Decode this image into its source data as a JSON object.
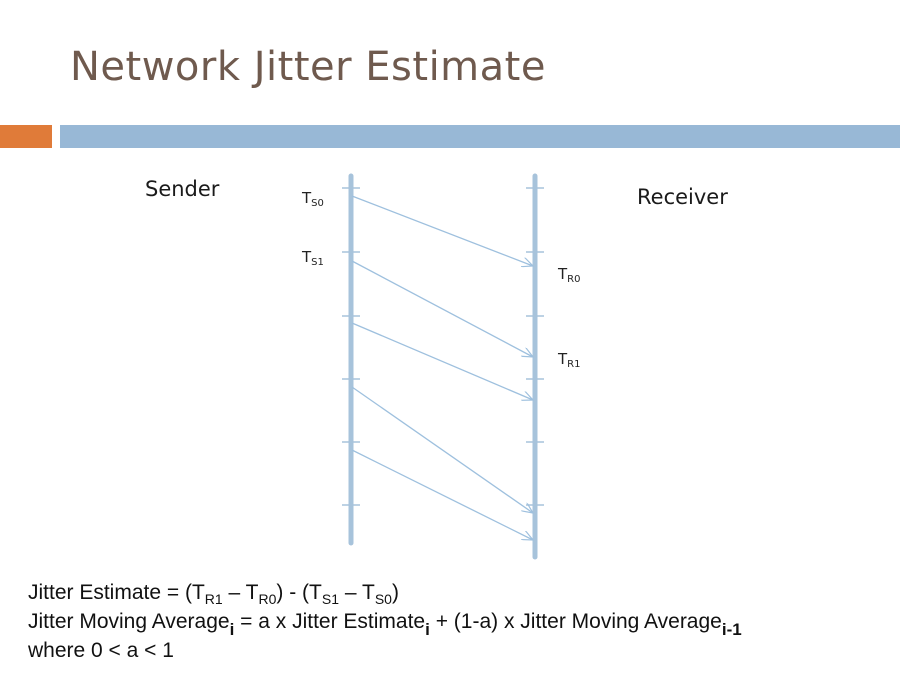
{
  "slide": {
    "title": "Network Jitter Estimate",
    "colors": {
      "title": "#6f5a4e",
      "accent_bar": "#e07b39",
      "main_bar": "#98b8d6",
      "timeline": "#a7c3db",
      "arrow": "#9ec0de"
    }
  },
  "diagram": {
    "sender_label": "Sender",
    "receiver_label": "Receiver",
    "timestamps": {
      "ts0": {
        "base": "T",
        "sub": "S0"
      },
      "ts1": {
        "base": "T",
        "sub": "S1"
      },
      "tr0": {
        "base": "T",
        "sub": "R0"
      },
      "tr1": {
        "base": "T",
        "sub": "R1"
      }
    }
  },
  "formula": {
    "line1": {
      "prefix": "Jitter Estimate = (T",
      "sub1": "R1",
      "mid1": " – T",
      "sub2": "R0",
      "mid2": ") - (T",
      "sub3": "S1",
      "mid3": " – T",
      "sub4": "S0",
      "suffix": ")"
    },
    "line2": {
      "prefix": "Jitter Moving Average",
      "sub1": "i",
      "mid1": " = a x Jitter Estimate",
      "sub2": "i",
      "mid2": " + (1-a) x Jitter Moving Average",
      "sub3": "i-1"
    },
    "line3": "where  0 < a < 1"
  }
}
